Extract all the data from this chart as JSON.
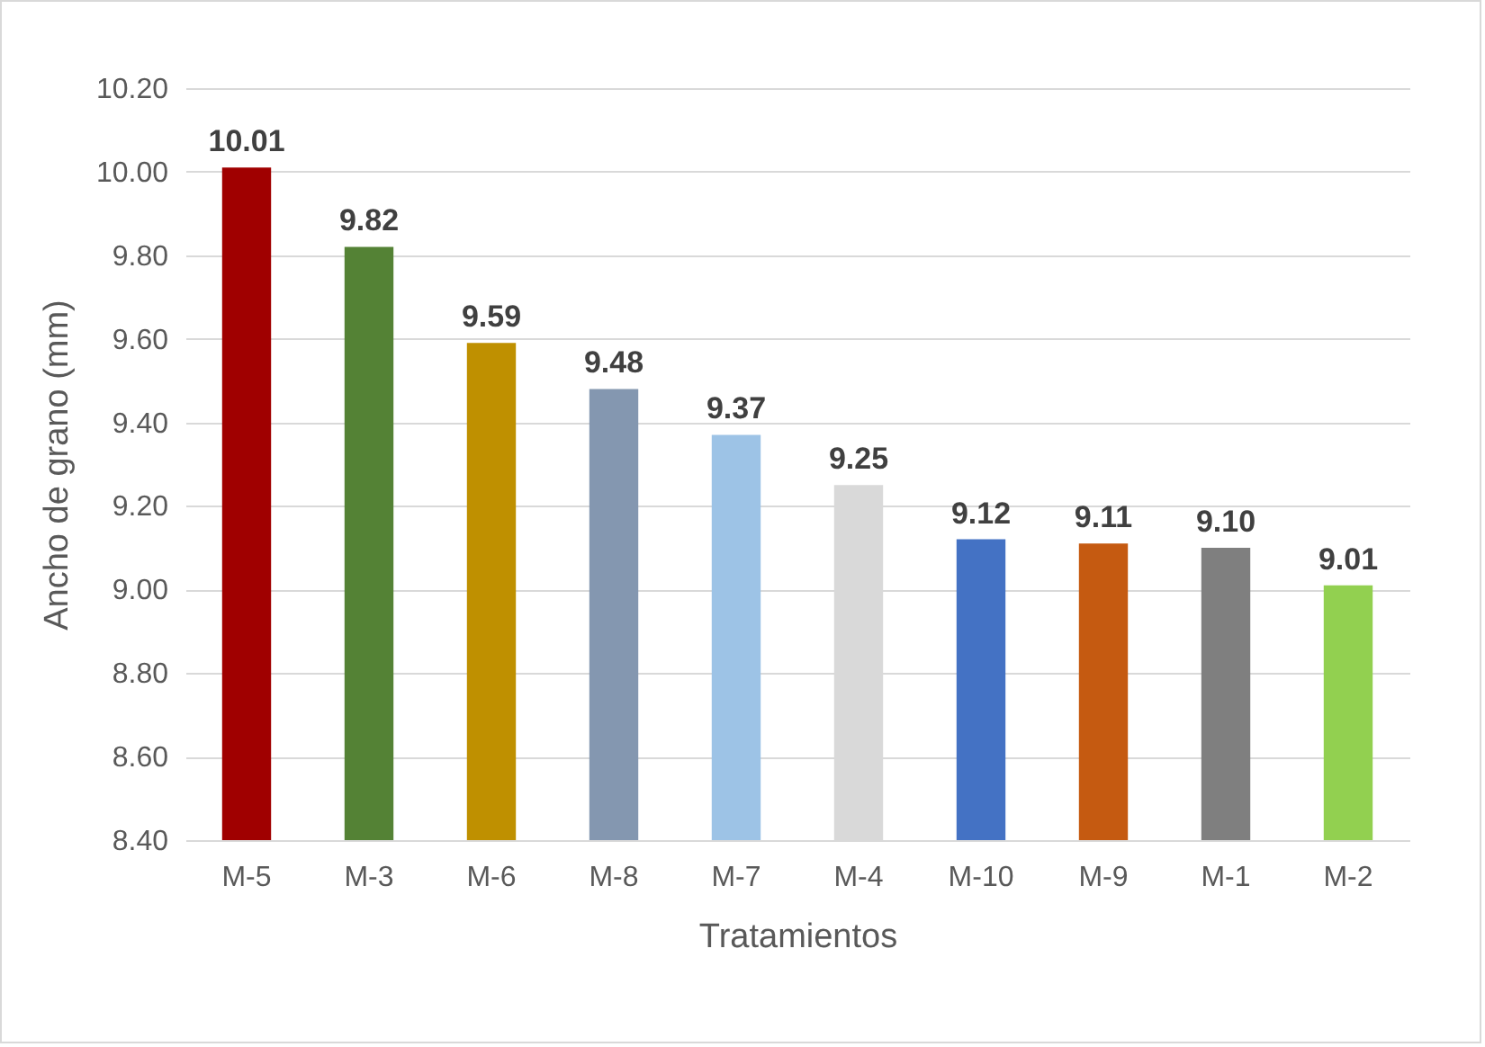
{
  "chart_data": {
    "type": "bar",
    "xlabel": "Tratamientos",
    "ylabel": "Ancho de grano (mm)",
    "categories": [
      "M-5",
      "M-3",
      "M-6",
      "M-8",
      "M-7",
      "M-4",
      "M-10",
      "M-9",
      "M-1",
      "M-2"
    ],
    "values": [
      10.01,
      9.82,
      9.59,
      9.48,
      9.37,
      9.25,
      9.12,
      9.11,
      9.1,
      9.01
    ],
    "value_labels": [
      "10.01",
      "9.82",
      "9.59",
      "9.48",
      "9.37",
      "9.25",
      "9.12",
      "9.11",
      "9.10",
      "9.01"
    ],
    "colors": [
      "#a00000",
      "#548235",
      "#bf9000",
      "#8497b0",
      "#9dc3e6",
      "#d9d9d9",
      "#4472c4",
      "#c55a11",
      "#7f7f7f",
      "#92d050"
    ],
    "ylim": [
      8.4,
      10.2
    ],
    "yticks": [
      {
        "value": 8.4,
        "label": "8.40"
      },
      {
        "value": 8.6,
        "label": "8.60"
      },
      {
        "value": 8.8,
        "label": "8.80"
      },
      {
        "value": 9.0,
        "label": "9.00"
      },
      {
        "value": 9.2,
        "label": "9.20"
      },
      {
        "value": 9.4,
        "label": "9.40"
      },
      {
        "value": 9.6,
        "label": "9.60"
      },
      {
        "value": 9.8,
        "label": "9.80"
      },
      {
        "value": 10.0,
        "label": "10.00"
      },
      {
        "value": 10.2,
        "label": "10.20"
      }
    ],
    "grid": true,
    "legend": false
  }
}
